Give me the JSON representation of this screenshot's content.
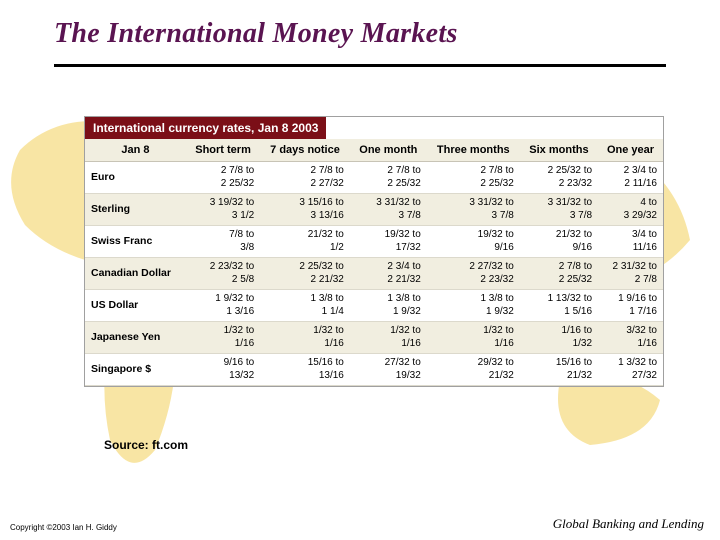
{
  "title": {
    "text": "The International Money Markets",
    "color": "#5a1451",
    "font_family": "Times New Roman, serif",
    "fontsize": 28,
    "italic": true,
    "bold": true
  },
  "caption": "International currency rates, Jan 8 2003",
  "caption_bg": "#7b0f17",
  "caption_fg": "#ffffff",
  "table": {
    "columns": [
      "Jan 8",
      "Short term",
      "7 days notice",
      "One month",
      "Three months",
      "Six months",
      "One year"
    ],
    "header_bg": "#f1eee0",
    "row_alt_bg": "#f1eee0",
    "border_color": "#c8c4b6",
    "rows": [
      {
        "label": "Euro",
        "cells": [
          "2 7/8 to\n2 25/32",
          "2 7/8 to\n2 27/32",
          "2 7/8 to\n2 25/32",
          "2 7/8 to\n2 25/32",
          "2 25/32 to\n2 23/32",
          "2 3/4 to\n2 11/16"
        ]
      },
      {
        "label": "Sterling",
        "cells": [
          "3 19/32 to\n3 1/2",
          "3 15/16 to\n3 13/16",
          "3 31/32 to\n3 7/8",
          "3 31/32 to\n3 7/8",
          "3 31/32 to\n3 7/8",
          "4 to\n3 29/32"
        ]
      },
      {
        "label": "Swiss Franc",
        "cells": [
          "7/8 to\n3/8",
          "21/32 to\n1/2",
          "19/32 to\n17/32",
          "19/32 to\n9/16",
          "21/32 to\n9/16",
          "3/4 to\n11/16"
        ]
      },
      {
        "label": "Canadian Dollar",
        "cells": [
          "2 23/32 to\n2 5/8",
          "2 25/32 to\n2 21/32",
          "2 3/4 to\n2 21/32",
          "2 27/32 to\n2 23/32",
          "2 7/8 to\n2 25/32",
          "2 31/32 to\n2 7/8"
        ]
      },
      {
        "label": "US Dollar",
        "cells": [
          "1 9/32 to\n1 3/16",
          "1 3/8 to\n1 1/4",
          "1 3/8 to\n1 9/32",
          "1 3/8 to\n1 9/32",
          "1 13/32 to\n1 5/16",
          "1 9/16 to\n1 7/16"
        ]
      },
      {
        "label": "Japanese Yen",
        "cells": [
          "1/32 to\n1/16",
          "1/32 to\n1/16",
          "1/32 to\n1/16",
          "1/32 to\n1/16",
          "1/16 to\n1/32",
          "3/32 to\n1/16"
        ]
      },
      {
        "label": "Singapore $",
        "cells": [
          "9/16 to\n13/32",
          "15/16 to\n13/16",
          "27/32 to\n19/32",
          "29/32 to\n21/32",
          "15/16 to\n21/32",
          "1 3/32 to\n27/32"
        ]
      }
    ]
  },
  "source": "Source: ft.com",
  "footer_left": "Copyright ©2003 Ian H. Giddy",
  "footer_right": "Global Banking and Lending",
  "map_fill": "#f2cf5a",
  "map_opacity": 0.55
}
